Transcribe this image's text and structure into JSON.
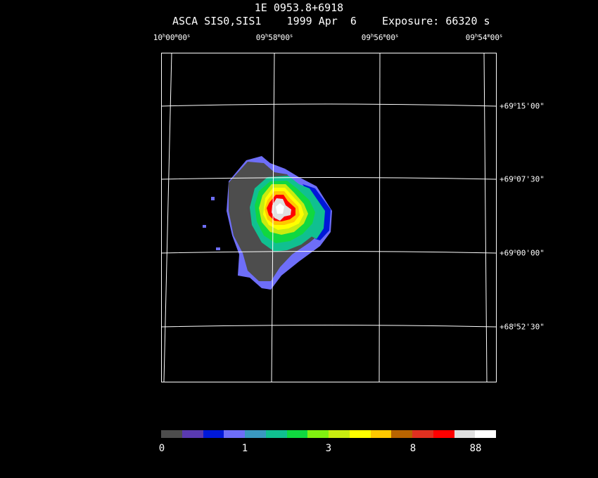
{
  "header": {
    "object": "1E 0953.8+6918",
    "obs_line": "ASCA SIS0,SIS1    1999 Apr  6    Exposure: 66320 s"
  },
  "ra_labels": [
    {
      "h": "10",
      "m": "00",
      "s": "00"
    },
    {
      "h": "09",
      "m": "58",
      "s": "00"
    },
    {
      "h": "09",
      "m": "56",
      "s": "00"
    },
    {
      "h": "09",
      "m": "54",
      "s": "00"
    }
  ],
  "dec_labels": [
    {
      "deg": "+69",
      "min": "15",
      "sec": "00"
    },
    {
      "deg": "+69",
      "min": "07",
      "sec": "30"
    },
    {
      "deg": "+69",
      "min": "00",
      "sec": "00"
    },
    {
      "deg": "+68",
      "min": "52",
      "sec": "30"
    }
  ],
  "colorbar": {
    "colors": [
      "#4d4d4d",
      "#5a3ab0",
      "#0018d8",
      "#6e6ef8",
      "#3a98c0",
      "#10c090",
      "#10d840",
      "#80f010",
      "#c8ec10",
      "#ffff00",
      "#ffc800",
      "#b86400",
      "#e03020",
      "#ff0000",
      "#e0e0e0",
      "#ffffff"
    ],
    "labels": [
      "0",
      "1",
      "3",
      "8",
      "88"
    ]
  }
}
